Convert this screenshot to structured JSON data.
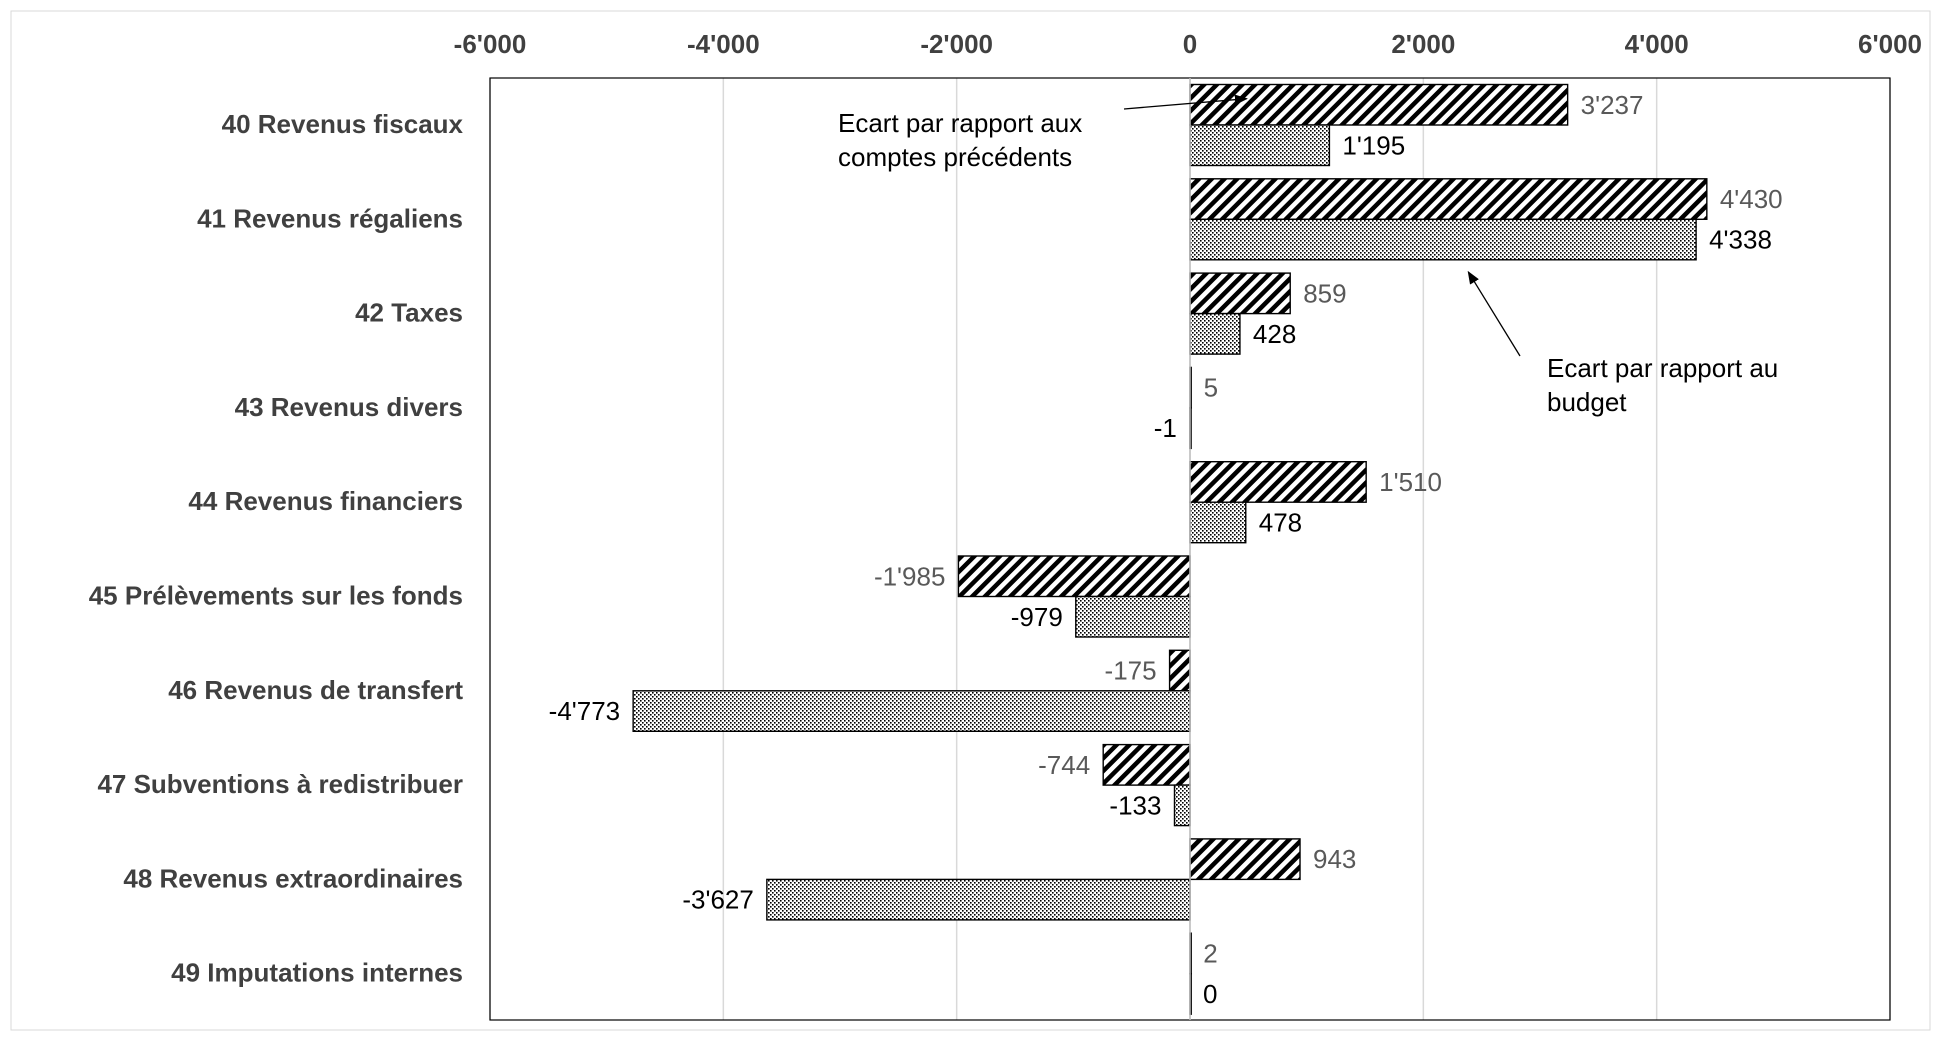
{
  "chart_data": {
    "type": "bar",
    "orientation": "horizontal",
    "categories": [
      "40 Revenus fiscaux",
      "41 Revenus régaliens",
      "42 Taxes",
      "43 Revenus divers",
      "44 Revenus financiers",
      "45 Prélèvements sur les fonds",
      "46 Revenus de transfert",
      "47 Subventions à redistribuer",
      "48 Revenus extraordinaires",
      "49 Imputations internes"
    ],
    "series": [
      {
        "pattern": "diagonal-hatch",
        "values": [
          3237,
          4430,
          859,
          5,
          1510,
          -1985,
          -175,
          -744,
          943,
          2
        ],
        "value_labels": [
          "3'237",
          "4'430",
          "859",
          "5",
          "1'510",
          "-1'985",
          "-175",
          "-744",
          "943",
          "2"
        ],
        "label_color": "#595959"
      },
      {
        "pattern": "dotted",
        "values": [
          1195,
          4338,
          428,
          -1,
          478,
          -979,
          -4773,
          -133,
          -3627,
          0
        ],
        "value_labels": [
          "1'195",
          "4'338",
          "428",
          "-1",
          "478",
          "-979",
          "-4'773",
          "-133",
          "-3'627",
          "0"
        ],
        "label_color": "#000000"
      }
    ],
    "xlim": [
      -6000,
      6000
    ],
    "x_ticks": [
      -6000,
      -4000,
      -2000,
      0,
      2000,
      4000,
      6000
    ],
    "x_tick_labels": [
      "-6'000",
      "-4'000",
      "-2'000",
      "0",
      "2'000",
      "4'000",
      "6'000"
    ],
    "x_axis_position": "top",
    "grid": true,
    "legend": "none",
    "annotations": [
      {
        "series_index": 0,
        "lines": [
          "Ecart par rapport aux",
          "comptes précédents"
        ]
      },
      {
        "series_index": 1,
        "lines": [
          "Ecart par rapport  au",
          "budget"
        ]
      }
    ]
  },
  "colors": {
    "grid": "#d9d9d9",
    "bar_outline": "#000000",
    "pattern": "#000000",
    "text": "#404040"
  }
}
